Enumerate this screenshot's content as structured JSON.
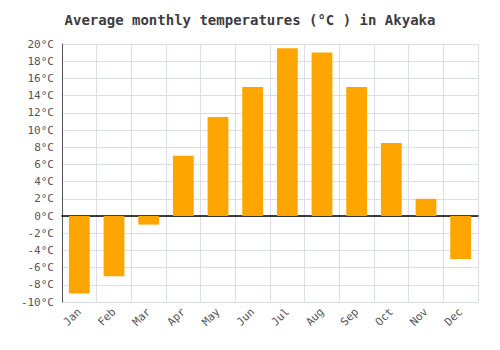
{
  "chart_data": {
    "type": "bar",
    "title": "Average monthly temperatures (°C ) in Akyaka",
    "categories": [
      "Jan",
      "Feb",
      "Mar",
      "Apr",
      "May",
      "Jun",
      "Jul",
      "Aug",
      "Sep",
      "Oct",
      "Nov",
      "Dec"
    ],
    "values": [
      -9,
      -7,
      -1,
      7,
      11.5,
      15,
      19.5,
      19,
      15,
      8.5,
      2,
      -5
    ],
    "color": "#FFA500",
    "ylim": [
      -10,
      20
    ],
    "yticks": [
      {
        "value": -10,
        "label": "-10°C"
      },
      {
        "value": -8,
        "label": "-8°C"
      },
      {
        "value": -6,
        "label": "-6°C"
      },
      {
        "value": -4,
        "label": "-4°C"
      },
      {
        "value": -2,
        "label": "-2°C"
      },
      {
        "value": 0,
        "label": "0°C"
      },
      {
        "value": 2,
        "label": "2°C"
      },
      {
        "value": 4,
        "label": "4°C"
      },
      {
        "value": 6,
        "label": "6°C"
      },
      {
        "value": 8,
        "label": "8°C"
      },
      {
        "value": 10,
        "label": "10°C"
      },
      {
        "value": 12,
        "label": "12°C"
      },
      {
        "value": 14,
        "label": "14°C"
      },
      {
        "value": 16,
        "label": "16°C"
      },
      {
        "value": 18,
        "label": "18°C"
      },
      {
        "value": 20,
        "label": "20°C"
      }
    ],
    "grid": true
  }
}
